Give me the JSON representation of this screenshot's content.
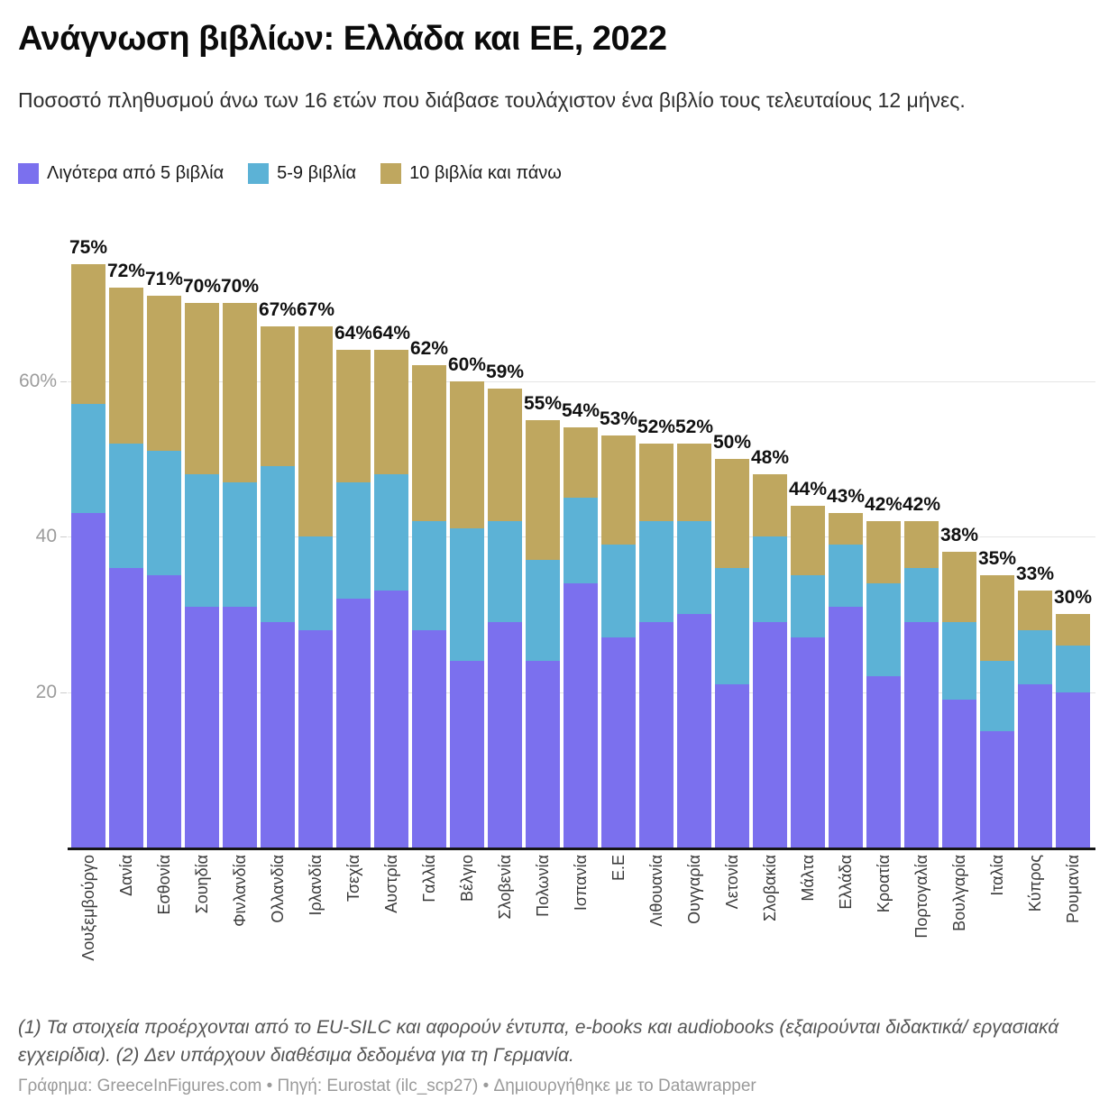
{
  "title": "Ανάγνωση βιβλίων: Ελλάδα και ΕΕ, 2022",
  "subtitle": "Ποσοστό πληθυσμού άνω των 16 ετών που διάβασε τουλάχιστον ένα βιβλίο τους τελευταίους 12 μήνες.",
  "legend": [
    {
      "label": "Λιγότερα από 5 βιβλία",
      "color": "#7b70ee"
    },
    {
      "label": "5-9 βιβλία",
      "color": "#5cb2d6"
    },
    {
      "label": "10 βιβλία και πάνω",
      "color": "#bfa75f"
    }
  ],
  "chart_data": {
    "type": "bar",
    "stacked": true,
    "title": "Ανάγνωση βιβλίων: Ελλάδα και ΕΕ, 2022",
    "xlabel": "",
    "ylabel": "",
    "ymax": 80,
    "grid": true,
    "legend_position": "top",
    "yticks": [
      {
        "value": 20,
        "label": "20"
      },
      {
        "value": 40,
        "label": "40"
      },
      {
        "value": 60,
        "label": "60%"
      }
    ],
    "categories": [
      "Λουξεμβούργο",
      "Δανία",
      "Εσθονία",
      "Σουηδία",
      "Φινλανδία",
      "Ολλανδία",
      "Ιρλανδία",
      "Τσεχία",
      "Αυστρία",
      "Γαλλία",
      "Βέλγιο",
      "Σλοβενία",
      "Πολωνία",
      "Ισπανία",
      "Ε.Ε",
      "Λιθουανία",
      "Ουγγαρία",
      "Λετονία",
      "Σλοβακία",
      "Μάλτα",
      "Ελλάδα",
      "Κροατία",
      "Πορτογαλία",
      "Βουλγαρία",
      "Ιταλία",
      "Κύπρος",
      "Ρουμανία"
    ],
    "series": [
      {
        "name": "Λιγότερα από 5 βιβλία",
        "color": "#7b70ee",
        "values": [
          43,
          36,
          35,
          31,
          31,
          29,
          28,
          32,
          33,
          28,
          24,
          29,
          24,
          34,
          27,
          29,
          30,
          21,
          29,
          27,
          31,
          22,
          29,
          19,
          15,
          21,
          20
        ]
      },
      {
        "name": "5-9 βιβλία",
        "color": "#5cb2d6",
        "values": [
          14,
          16,
          16,
          17,
          16,
          20,
          12,
          15,
          15,
          14,
          17,
          13,
          13,
          11,
          12,
          13,
          12,
          15,
          11,
          8,
          8,
          12,
          7,
          10,
          9,
          7,
          6
        ]
      },
      {
        "name": "10 βιβλία και πάνω",
        "color": "#bfa75f",
        "values": [
          18,
          20,
          20,
          22,
          23,
          18,
          27,
          17,
          16,
          20,
          19,
          17,
          18,
          9,
          14,
          10,
          10,
          14,
          8,
          9,
          4,
          8,
          6,
          9,
          11,
          5,
          4
        ]
      }
    ],
    "totals": [
      75,
      72,
      71,
      70,
      70,
      67,
      67,
      64,
      64,
      62,
      60,
      59,
      55,
      54,
      53,
      52,
      52,
      50,
      48,
      44,
      43,
      42,
      42,
      38,
      35,
      33,
      30
    ],
    "total_labels": [
      "75%",
      "72%",
      "71%",
      "70%",
      "70%",
      "67%",
      "67%",
      "64%",
      "64%",
      "62%",
      "60%",
      "59%",
      "55%",
      "54%",
      "53%",
      "52%",
      "52%",
      "50%",
      "48%",
      "44%",
      "43%",
      "42%",
      "42%",
      "38%",
      "35%",
      "33%",
      "30%"
    ]
  },
  "footnote": "(1) Τα στοιχεία προέρχονται από το EU-SILC και αφορούν έντυπα, e-books και audiobooks (εξαιρούνται διδακτικά/ εργασιακά εγχειρίδια). (2) Δεν υπάρχουν διαθέσιμα δεδομένα για τη Γερμανία.",
  "credit": "Γράφημα: GreeceInFigures.com • Πηγή: Eurostat (ilc_scp27) • Δημιουργήθηκε με το Datawrapper"
}
